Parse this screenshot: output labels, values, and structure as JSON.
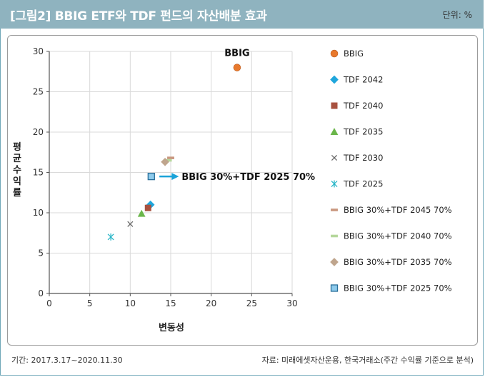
{
  "header": {
    "title": "[그림2] BBIG ETF와 TDF 펀드의 자산배분 효과",
    "unit": "단위: %"
  },
  "footer": {
    "period": "기간: 2017.3.17~2020.11.30",
    "source": "자료: 미래에셋자산운용, 한국거래소(주간 수익률 기준으로 분석)"
  },
  "colors": {
    "header_bg": "#8fb3bf",
    "arrow": "#1aa3d9"
  },
  "chart_data": {
    "type": "scatter",
    "xlabel": "변동성",
    "ylabel": "평균수익률",
    "xlim": [
      0,
      30
    ],
    "ylim": [
      0,
      30
    ],
    "x_ticks": [
      0,
      5,
      10,
      15,
      20,
      25,
      30
    ],
    "y_ticks": [
      0,
      5,
      10,
      15,
      20,
      25,
      30
    ],
    "grid": true,
    "legend_position": "right",
    "series": [
      {
        "name": "BBIG",
        "marker": "circle",
        "color": "#e8792d",
        "x": 23.2,
        "y": 28.0,
        "label": "BBIG"
      },
      {
        "name": "TDF 2042",
        "marker": "diamond",
        "color": "#1fa6dc",
        "x": 12.5,
        "y": 11.0
      },
      {
        "name": "TDF 2040",
        "marker": "square",
        "color": "#a8513f",
        "x": 12.2,
        "y": 10.6
      },
      {
        "name": "TDF 2035",
        "marker": "triangle",
        "color": "#6ab64a",
        "x": 11.4,
        "y": 9.9
      },
      {
        "name": "TDF 2030",
        "marker": "x",
        "color": "#666666",
        "x": 10.0,
        "y": 8.6
      },
      {
        "name": "TDF 2025",
        "marker": "asterisk",
        "color": "#2bb6c8",
        "x": 7.6,
        "y": 7.0
      },
      {
        "name": "BBIG 30%+TDF 2045 70%",
        "marker": "dash",
        "color": "#c9977f",
        "x": 15.0,
        "y": 16.8
      },
      {
        "name": "BBIG 30%+TDF 2040 70%",
        "marker": "dash",
        "color": "#b5d79b",
        "x": 14.7,
        "y": 16.5
      },
      {
        "name": "BBIG 30%+TDF 2035 70%",
        "marker": "diamond",
        "color": "#bfa58d",
        "x": 14.3,
        "y": 16.3
      },
      {
        "name": "BBIG 30%+TDF 2025 70%",
        "marker": "square-outline",
        "color": "#8ecbec",
        "x": 12.6,
        "y": 14.5
      }
    ],
    "annotation": {
      "text": "BBIG 30%+TDF 2025 70%",
      "arrow_from_x": 13.6,
      "arrow_to_x": 16.0,
      "y": 14.5
    }
  }
}
